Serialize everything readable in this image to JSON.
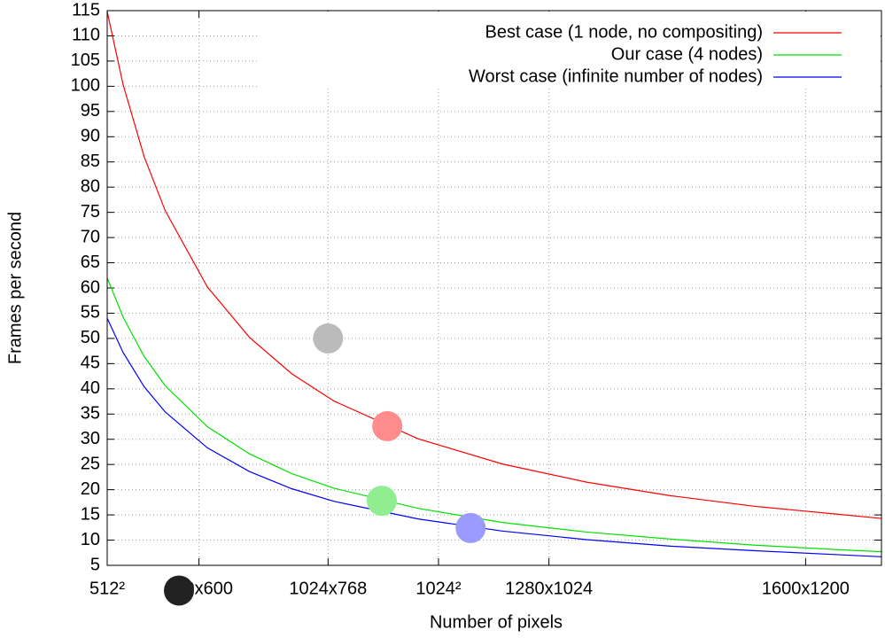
{
  "chart_data": {
    "type": "line",
    "xlabel": "Number of pixels",
    "ylabel": "Frames per second",
    "x": [
      262144,
      300000,
      350000,
      400000,
      500000,
      600000,
      700000,
      800000,
      1000000,
      1200000,
      1400000,
      1600000,
      1800000,
      2000000,
      2100000
    ],
    "series": [
      {
        "name": "Best case (1 node, no compositing)",
        "color": "#ff0000",
        "values": [
          114.8,
          100.3,
          86.0,
          75.3,
          60.2,
          50.2,
          43.0,
          37.6,
          30.1,
          25.1,
          21.5,
          18.8,
          16.7,
          15.1,
          14.3
        ]
      },
      {
        "name": "Our case (4 nodes)",
        "color": "#00e000",
        "values": [
          62.0,
          54.2,
          46.4,
          40.6,
          32.5,
          27.1,
          23.2,
          20.3,
          16.3,
          13.5,
          11.6,
          10.2,
          9.0,
          8.1,
          7.7
        ]
      },
      {
        "name": "Worst case (infinite number of nodes)",
        "color": "#0000ff",
        "values": [
          54.0,
          47.2,
          40.4,
          35.4,
          28.3,
          23.6,
          20.2,
          17.7,
          14.2,
          11.8,
          10.1,
          8.8,
          7.9,
          7.1,
          6.7
        ]
      }
    ],
    "points": [
      {
        "x": 786432,
        "y": 50,
        "color": "#bbbbbb"
      },
      {
        "x": 927000,
        "y": 32.6,
        "color": "#ff8c8c"
      },
      {
        "x": 914000,
        "y": 17.8,
        "color": "#90ee90"
      },
      {
        "x": 1124800,
        "y": 12.4,
        "color": "#9a9aff"
      },
      {
        "x": 432500,
        "y": 0,
        "color": "#222222"
      }
    ],
    "xlim": [
      262144,
      2100000
    ],
    "ylim": [
      5,
      115
    ],
    "xticks": [
      {
        "value": 262144,
        "label": "512²"
      },
      {
        "value": 480000,
        "label": "800x600"
      },
      {
        "value": 786432,
        "label": "1024x768"
      },
      {
        "value": 1048576,
        "label": "1024²"
      },
      {
        "value": 1310720,
        "label": "1280x1024"
      },
      {
        "value": 1920000,
        "label": "1600x1200"
      }
    ],
    "yticks": [
      5,
      10,
      15,
      20,
      25,
      30,
      35,
      40,
      45,
      50,
      55,
      60,
      65,
      70,
      75,
      80,
      85,
      90,
      95,
      100,
      105,
      110,
      115
    ],
    "grid": true,
    "legend": "top-right"
  }
}
